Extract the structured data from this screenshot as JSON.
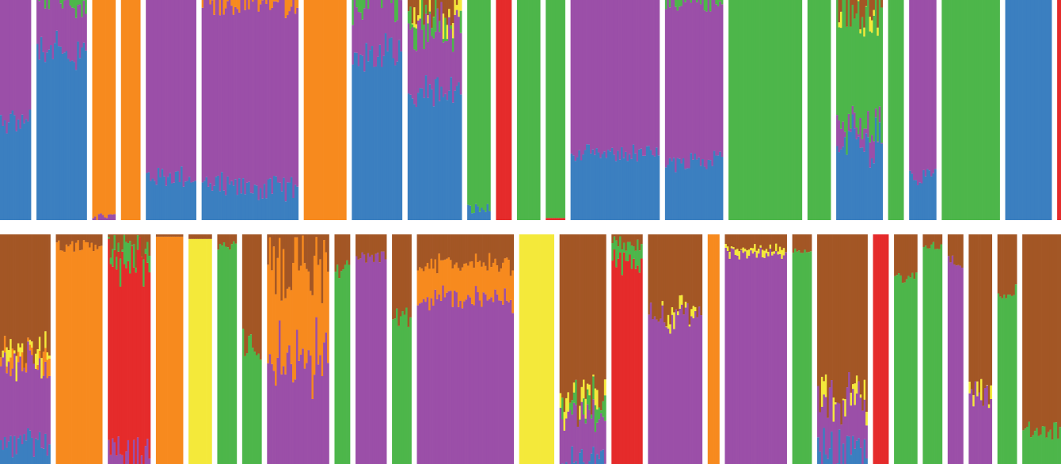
{
  "chart_data": {
    "type": "stacked-bar",
    "grid": false,
    "legend": "none",
    "value_range": [
      0,
      1
    ],
    "cluster_colors": {
      "blue": "#3b7fc0",
      "purple": "#9b4fa8",
      "orange": "#f78a1e",
      "green": "#4db64a",
      "red": "#e52b2b",
      "brown": "#a35625",
      "yellow": "#f4e93a"
    },
    "stack_order": [
      "blue",
      "purple",
      "orange",
      "red",
      "green",
      "yellow",
      "brown"
    ],
    "panels": [
      {
        "name": "",
        "populations": [
          {
            "n": 16,
            "p": {
              "blue": 0.45,
              "purple": 0.55
            },
            "jitter": 0.08
          },
          {
            "n": 26,
            "p": {
              "blue": 0.78,
              "purple": 0.21,
              "green": 0.01
            },
            "jitter": 0.08
          },
          {
            "n": 12,
            "p": {
              "orange": 0.98,
              "purple": 0.02
            },
            "jitter": 0.02
          },
          {
            "n": 10,
            "p": {
              "orange": 1.0
            },
            "jitter": 0
          },
          {
            "n": 26,
            "p": {
              "blue": 0.2,
              "purple": 0.8
            },
            "jitter": 0.06
          },
          {
            "n": 50,
            "p": {
              "blue": 0.15,
              "purple": 0.84,
              "orange": 0.01
            },
            "jitter": 0.07
          },
          {
            "n": 22,
            "p": {
              "orange": 1.0
            },
            "jitter": 0
          },
          {
            "n": 26,
            "p": {
              "blue": 0.75,
              "purple": 0.24,
              "green": 0.01
            },
            "jitter": 0.1
          },
          {
            "n": 28,
            "p": {
              "blue": 0.6,
              "purple": 0.3,
              "green": 0.05,
              "brown": 0.04,
              "yellow": 0.01
            },
            "jitter": 0.1
          },
          {
            "n": 12,
            "p": {
              "blue": 0.05,
              "green": 0.95
            },
            "jitter": 0.03
          },
          {
            "n": 8,
            "p": {
              "red": 1.0
            },
            "jitter": 0
          },
          {
            "n": 12,
            "p": {
              "green": 1.0
            },
            "jitter": 0
          },
          {
            "n": 10,
            "p": {
              "green": 0.99,
              "red": 0.01
            },
            "jitter": 0
          },
          {
            "n": 46,
            "p": {
              "blue": 0.3,
              "purple": 0.7
            },
            "jitter": 0.05
          },
          {
            "n": 30,
            "p": {
              "blue": 0.27,
              "purple": 0.72,
              "green": 0.01
            },
            "jitter": 0.05
          },
          {
            "n": 38,
            "p": {
              "green": 1.0
            },
            "jitter": 0
          },
          {
            "n": 12,
            "p": {
              "green": 1.0
            },
            "jitter": 0
          },
          {
            "n": 24,
            "p": {
              "blue": 0.35,
              "green": 0.5,
              "purple": 0.08,
              "brown": 0.06,
              "yellow": 0.01
            },
            "jitter": 0.1
          },
          {
            "n": 8,
            "p": {
              "green": 1.0
            },
            "jitter": 0
          },
          {
            "n": 14,
            "p": {
              "blue": 0.2,
              "purple": 0.8
            },
            "jitter": 0.05
          },
          {
            "n": 30,
            "p": {
              "green": 1.0
            },
            "jitter": 0
          },
          {
            "n": 24,
            "p": {
              "blue": 1.0
            },
            "jitter": 0
          },
          {
            "n": 2,
            "p": {
              "red": 1.0
            },
            "jitter": 0
          }
        ]
      },
      {
        "name": "",
        "populations": [
          {
            "n": 26,
            "p": {
              "blue": 0.1,
              "purple": 0.35,
              "orange": 0.02,
              "yellow": 0.02,
              "brown": 0.51
            },
            "jitter": 0.08
          },
          {
            "n": 24,
            "p": {
              "orange": 0.95,
              "brown": 0.05
            },
            "jitter": 0.03
          },
          {
            "n": 22,
            "p": {
              "red": 0.82,
              "green": 0.06,
              "purple": 0.05,
              "brown": 0.07
            },
            "jitter": 0.08
          },
          {
            "n": 14,
            "p": {
              "orange": 0.99,
              "brown": 0.01
            },
            "jitter": 0
          },
          {
            "n": 12,
            "p": {
              "yellow": 0.98,
              "brown": 0.02
            },
            "jitter": 0
          },
          {
            "n": 10,
            "p": {
              "green": 0.95,
              "brown": 0.05
            },
            "jitter": 0.02
          },
          {
            "n": 10,
            "p": {
              "green": 0.5,
              "brown": 0.5
            },
            "jitter": 0.1
          },
          {
            "n": 32,
            "p": {
              "purple": 0.45,
              "orange": 0.4,
              "brown": 0.15
            },
            "jitter": 0.15
          },
          {
            "n": 8,
            "p": {
              "green": 0.85,
              "brown": 0.15
            },
            "jitter": 0.05
          },
          {
            "n": 16,
            "p": {
              "purple": 0.9,
              "brown": 0.1
            },
            "jitter": 0.03
          },
          {
            "n": 10,
            "p": {
              "green": 0.6,
              "brown": 0.4
            },
            "jitter": 0.1
          },
          {
            "n": 50,
            "p": {
              "purple": 0.72,
              "orange": 0.15,
              "brown": 0.13
            },
            "jitter": 0.05
          },
          {
            "n": 18,
            "p": {
              "yellow": 1.0
            },
            "jitter": 0
          },
          {
            "n": 24,
            "p": {
              "blue": 0.02,
              "green": 0.05,
              "purple": 0.2,
              "yellow": 0.03,
              "brown": 0.7
            },
            "jitter": 0.07
          },
          {
            "n": 16,
            "p": {
              "red": 0.88,
              "green": 0.08,
              "brown": 0.04
            },
            "jitter": 0.04
          },
          {
            "n": 28,
            "p": {
              "purple": 0.65,
              "yellow": 0.01,
              "brown": 0.34
            },
            "jitter": 0.07
          },
          {
            "n": 6,
            "p": {
              "orange": 1.0
            },
            "jitter": 0
          },
          {
            "n": 32,
            "p": {
              "purple": 0.92,
              "yellow": 0.02,
              "brown": 0.06
            },
            "jitter": 0.02
          },
          {
            "n": 10,
            "p": {
              "green": 0.92,
              "brown": 0.08
            },
            "jitter": 0.02
          },
          {
            "n": 26,
            "p": {
              "blue": 0.06,
              "purple": 0.2,
              "yellow": 0.04,
              "brown": 0.7
            },
            "jitter": 0.1
          },
          {
            "n": 8,
            "p": {
              "red": 1.0
            },
            "jitter": 0
          },
          {
            "n": 12,
            "p": {
              "green": 0.8,
              "brown": 0.2
            },
            "jitter": 0.04
          },
          {
            "n": 10,
            "p": {
              "green": 0.95,
              "brown": 0.05
            },
            "jitter": 0.02
          },
          {
            "n": 8,
            "p": {
              "purple": 0.88,
              "brown": 0.12
            },
            "jitter": 0.03
          },
          {
            "n": 12,
            "p": {
              "purple": 0.3,
              "yellow": 0.02,
              "brown": 0.68
            },
            "jitter": 0.08
          },
          {
            "n": 10,
            "p": {
              "green": 0.75,
              "brown": 0.25
            },
            "jitter": 0.05
          },
          {
            "n": 20,
            "p": {
              "green": 0.15,
              "brown": 0.85
            },
            "jitter": 0.05
          }
        ]
      }
    ]
  }
}
